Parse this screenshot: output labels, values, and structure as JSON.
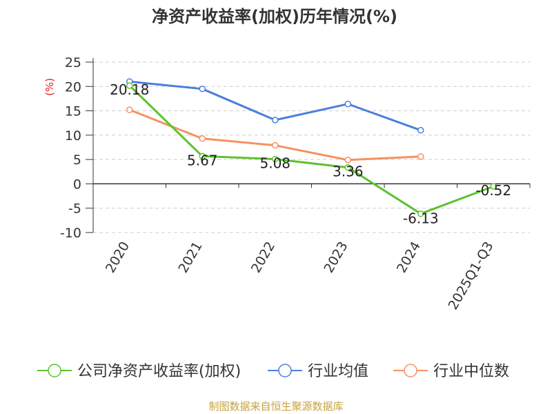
{
  "chart_data": {
    "type": "line",
    "title": "净资产收益率(加权)历年情况(%)",
    "ylabel": "(%)",
    "xlabel": "",
    "categories": [
      "2020",
      "2021",
      "2022",
      "2023",
      "2024",
      "2025Q1-Q3"
    ],
    "ylim": [
      -10,
      25
    ],
    "yticks": [
      25,
      20,
      15,
      10,
      5,
      0,
      -5,
      -10
    ],
    "grid": true,
    "legend_position": "bottom",
    "series": [
      {
        "name": "公司净资产收益率(加权)",
        "color": "#5cc22d",
        "values": [
          20.18,
          5.67,
          5.08,
          3.36,
          -6.13,
          -0.52
        ],
        "labels": [
          "20.18",
          "5.67",
          "5.08",
          "3.36",
          "-6.13",
          "-0.52"
        ]
      },
      {
        "name": "行业均值",
        "color": "#4a7fdb",
        "values": [
          21.0,
          19.5,
          13.1,
          16.4,
          11.0,
          null
        ]
      },
      {
        "name": "行业中位数",
        "color": "#f59160",
        "values": [
          15.2,
          9.3,
          7.9,
          4.9,
          5.6,
          null
        ]
      }
    ],
    "source": "制图数据来自恒生聚源数据库",
    "source_color": "#c8a23c",
    "ylabel_color": "#e02020"
  }
}
